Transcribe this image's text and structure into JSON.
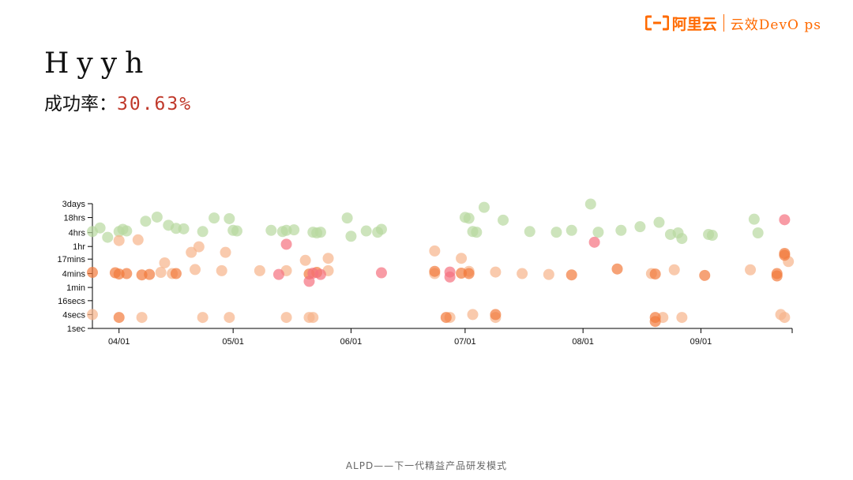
{
  "brand": {
    "name": "阿里云",
    "product": "云效DevO ps"
  },
  "title": "Hyyh",
  "success": {
    "label": "成功率：",
    "value": "30.63%"
  },
  "footer": "ALPD——下一代精益产品研发模式",
  "colors": {
    "ok": "#b8d9a0",
    "warn": "#f7b48a",
    "busy": "#f27a3c",
    "fail": "#f5707f",
    "brand": "#ff6a00"
  },
  "chart_data": {
    "type": "scatter",
    "title": "",
    "xlabel": "",
    "ylabel": "",
    "xlim": [
      "2023-03-25",
      "2023-09-25"
    ],
    "x_ticks": [
      {
        "date": "2023-04-01",
        "label": "04/01"
      },
      {
        "date": "2023-05-01",
        "label": "05/01"
      },
      {
        "date": "2023-06-01",
        "label": "06/01"
      },
      {
        "date": "2023-07-01",
        "label": "07/01"
      },
      {
        "date": "2023-08-01",
        "label": "08/01"
      },
      {
        "date": "2023-09-01",
        "label": "09/01"
      }
    ],
    "y_scale": "log",
    "y_unit": "seconds",
    "y_ticks": [
      {
        "label": "3days",
        "value": 259200
      },
      {
        "label": "18hrs",
        "value": 64800
      },
      {
        "label": "4hrs",
        "value": 14400
      },
      {
        "label": "1hr",
        "value": 3600
      },
      {
        "label": "17mins",
        "value": 1020
      },
      {
        "label": "4mins",
        "value": 240
      },
      {
        "label": "1min",
        "value": 60
      },
      {
        "label": "16secs",
        "value": 16
      },
      {
        "label": "4secs",
        "value": 4
      },
      {
        "label": "1sec",
        "value": 1
      }
    ],
    "series": [
      {
        "category": "ok",
        "points": [
          {
            "x": "2023-03-25",
            "y": 16000
          },
          {
            "x": "2023-03-27",
            "y": 23000
          },
          {
            "x": "2023-03-29",
            "y": 9000
          },
          {
            "x": "2023-04-01",
            "y": 16000
          },
          {
            "x": "2023-04-02",
            "y": 20000
          },
          {
            "x": "2023-04-03",
            "y": 17000
          },
          {
            "x": "2023-04-08",
            "y": 45000
          },
          {
            "x": "2023-04-11",
            "y": 68000
          },
          {
            "x": "2023-04-14",
            "y": 30000
          },
          {
            "x": "2023-04-16",
            "y": 22000
          },
          {
            "x": "2023-04-18",
            "y": 21000
          },
          {
            "x": "2023-04-23",
            "y": 16000
          },
          {
            "x": "2023-04-26",
            "y": 62000
          },
          {
            "x": "2023-04-30",
            "y": 58000
          },
          {
            "x": "2023-05-01",
            "y": 18000
          },
          {
            "x": "2023-05-02",
            "y": 17000
          },
          {
            "x": "2023-05-11",
            "y": 18000
          },
          {
            "x": "2023-05-14",
            "y": 16000
          },
          {
            "x": "2023-05-15",
            "y": 18000
          },
          {
            "x": "2023-05-17",
            "y": 19000
          },
          {
            "x": "2023-05-22",
            "y": 15000
          },
          {
            "x": "2023-05-23",
            "y": 14000
          },
          {
            "x": "2023-05-24",
            "y": 15000
          },
          {
            "x": "2023-05-31",
            "y": 62000
          },
          {
            "x": "2023-06-01",
            "y": 10000
          },
          {
            "x": "2023-06-05",
            "y": 17000
          },
          {
            "x": "2023-06-08",
            "y": 15000
          },
          {
            "x": "2023-06-09",
            "y": 20000
          },
          {
            "x": "2023-07-01",
            "y": 66000
          },
          {
            "x": "2023-07-02",
            "y": 60000
          },
          {
            "x": "2023-07-03",
            "y": 16000
          },
          {
            "x": "2023-07-04",
            "y": 15000
          },
          {
            "x": "2023-07-06",
            "y": 180000
          },
          {
            "x": "2023-07-11",
            "y": 50000
          },
          {
            "x": "2023-07-18",
            "y": 16000
          },
          {
            "x": "2023-07-25",
            "y": 15000
          },
          {
            "x": "2023-07-29",
            "y": 18000
          },
          {
            "x": "2023-08-03",
            "y": 250000
          },
          {
            "x": "2023-08-05",
            "y": 15000
          },
          {
            "x": "2023-08-11",
            "y": 18000
          },
          {
            "x": "2023-08-16",
            "y": 26000
          },
          {
            "x": "2023-08-21",
            "y": 40000
          },
          {
            "x": "2023-08-24",
            "y": 12000
          },
          {
            "x": "2023-08-26",
            "y": 14000
          },
          {
            "x": "2023-08-27",
            "y": 8000
          },
          {
            "x": "2023-09-03",
            "y": 12000
          },
          {
            "x": "2023-09-04",
            "y": 11000
          },
          {
            "x": "2023-09-15",
            "y": 55000
          },
          {
            "x": "2023-09-16",
            "y": 14000
          }
        ]
      },
      {
        "category": "warn",
        "points": [
          {
            "x": "2023-03-25",
            "y": 4
          },
          {
            "x": "2023-04-01",
            "y": 6500
          },
          {
            "x": "2023-04-06",
            "y": 7000
          },
          {
            "x": "2023-04-07",
            "y": 3
          },
          {
            "x": "2023-04-12",
            "y": 270
          },
          {
            "x": "2023-04-13",
            "y": 700
          },
          {
            "x": "2023-04-15",
            "y": 240
          },
          {
            "x": "2023-04-20",
            "y": 2000
          },
          {
            "x": "2023-04-21",
            "y": 360
          },
          {
            "x": "2023-04-22",
            "y": 3500
          },
          {
            "x": "2023-04-23",
            "y": 3
          },
          {
            "x": "2023-04-28",
            "y": 320
          },
          {
            "x": "2023-04-29",
            "y": 2000
          },
          {
            "x": "2023-04-30",
            "y": 3
          },
          {
            "x": "2023-05-08",
            "y": 320
          },
          {
            "x": "2023-05-15",
            "y": 320
          },
          {
            "x": "2023-05-15",
            "y": 3
          },
          {
            "x": "2023-05-20",
            "y": 900
          },
          {
            "x": "2023-05-21",
            "y": 3
          },
          {
            "x": "2023-05-22",
            "y": 3
          },
          {
            "x": "2023-05-26",
            "y": 1100
          },
          {
            "x": "2023-05-26",
            "y": 320
          },
          {
            "x": "2023-06-23",
            "y": 2300
          },
          {
            "x": "2023-06-23",
            "y": 240
          },
          {
            "x": "2023-06-27",
            "y": 3
          },
          {
            "x": "2023-06-30",
            "y": 1100
          },
          {
            "x": "2023-07-02",
            "y": 300
          },
          {
            "x": "2023-07-03",
            "y": 4
          },
          {
            "x": "2023-07-09",
            "y": 280
          },
          {
            "x": "2023-07-09",
            "y": 3
          },
          {
            "x": "2023-07-16",
            "y": 240
          },
          {
            "x": "2023-07-23",
            "y": 220
          },
          {
            "x": "2023-08-19",
            "y": 240
          },
          {
            "x": "2023-08-22",
            "y": 3
          },
          {
            "x": "2023-08-25",
            "y": 350
          },
          {
            "x": "2023-08-27",
            "y": 3
          },
          {
            "x": "2023-09-14",
            "y": 350
          },
          {
            "x": "2023-09-22",
            "y": 4
          },
          {
            "x": "2023-09-23",
            "y": 3
          },
          {
            "x": "2023-09-24",
            "y": 800
          }
        ]
      },
      {
        "category": "busy",
        "points": [
          {
            "x": "2023-03-25",
            "y": 270
          },
          {
            "x": "2023-03-31",
            "y": 260
          },
          {
            "x": "2023-04-01",
            "y": 230
          },
          {
            "x": "2023-04-03",
            "y": 240
          },
          {
            "x": "2023-04-01",
            "y": 3
          },
          {
            "x": "2023-04-07",
            "y": 210
          },
          {
            "x": "2023-04-09",
            "y": 220
          },
          {
            "x": "2023-04-16",
            "y": 240
          },
          {
            "x": "2023-05-21",
            "y": 230
          },
          {
            "x": "2023-05-23",
            "y": 270
          },
          {
            "x": "2023-06-23",
            "y": 300
          },
          {
            "x": "2023-06-26",
            "y": 3
          },
          {
            "x": "2023-06-30",
            "y": 250
          },
          {
            "x": "2023-07-02",
            "y": 240
          },
          {
            "x": "2023-07-09",
            "y": 4
          },
          {
            "x": "2023-07-29",
            "y": 210
          },
          {
            "x": "2023-08-10",
            "y": 380
          },
          {
            "x": "2023-08-20",
            "y": 230
          },
          {
            "x": "2023-08-20",
            "y": 3
          },
          {
            "x": "2023-08-20",
            "y": 2
          },
          {
            "x": "2023-09-02",
            "y": 200
          },
          {
            "x": "2023-09-21",
            "y": 240
          },
          {
            "x": "2023-09-21",
            "y": 190
          },
          {
            "x": "2023-09-23",
            "y": 1500
          },
          {
            "x": "2023-09-23",
            "y": 1800
          }
        ]
      },
      {
        "category": "fail",
        "points": [
          {
            "x": "2023-05-13",
            "y": 220
          },
          {
            "x": "2023-05-15",
            "y": 4500
          },
          {
            "x": "2023-05-21",
            "y": 110
          },
          {
            "x": "2023-05-22",
            "y": 250
          },
          {
            "x": "2023-05-24",
            "y": 220
          },
          {
            "x": "2023-06-09",
            "y": 260
          },
          {
            "x": "2023-06-27",
            "y": 280
          },
          {
            "x": "2023-06-27",
            "y": 170
          },
          {
            "x": "2023-08-04",
            "y": 5500
          },
          {
            "x": "2023-09-23",
            "y": 52000
          }
        ]
      }
    ]
  }
}
